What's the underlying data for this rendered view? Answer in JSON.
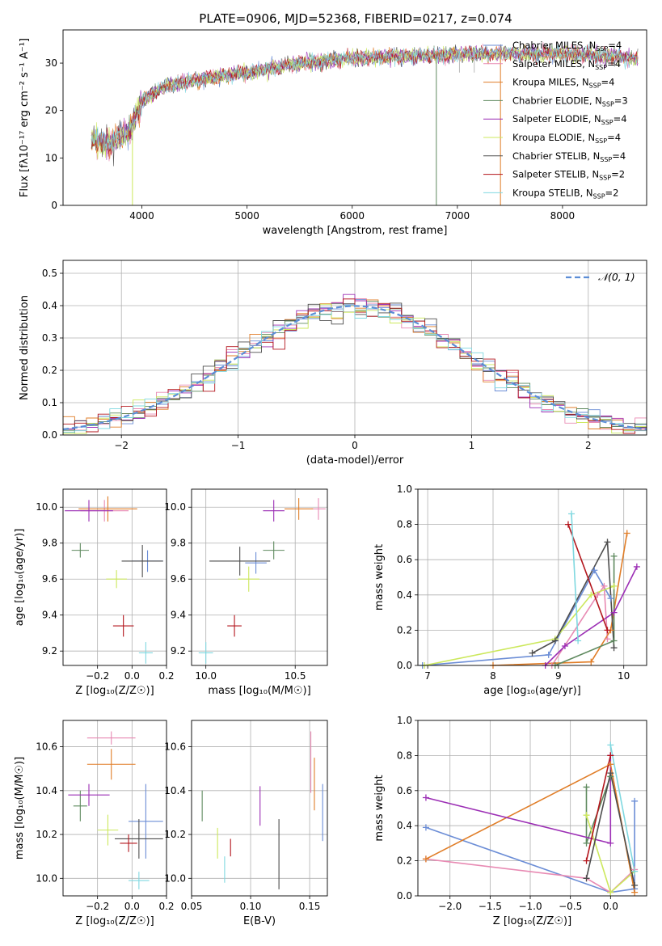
{
  "title": "PLATE=0906, MJD=52368, FIBERID=0217, z=0.074",
  "colors": [
    "#6b8dd6",
    "#e88ab3",
    "#e07d27",
    "#5f8a5f",
    "#9c2fb5",
    "#cce85c",
    "#4d4d4d",
    "#b3151c",
    "#7fd8e0"
  ],
  "chart_data": [
    {
      "type": "line",
      "id": "spectrum",
      "title": "PLATE=0906, MJD=52368, FIBERID=0217, z=0.074",
      "xlabel": "wavelength [Angstrom, rest frame]",
      "ylabel": "Flux [f_λ10^-17 erg cm^-2 s^-1 A^-1]",
      "xlim": [
        3250,
        8800
      ],
      "ylim": [
        0,
        37
      ],
      "xticks": [
        4000,
        5000,
        6000,
        7000,
        8000
      ],
      "yticks": [
        0,
        10,
        20,
        30
      ],
      "grid": false,
      "legend_position": "top-right",
      "legend": [
        {
          "label": "Chabrier MILES, N",
          "sub": "SSP",
          "n": "=4"
        },
        {
          "label": "Salpeter MILES, N",
          "sub": "SSP",
          "n": "=4"
        },
        {
          "label": "Kroupa MILES, N",
          "sub": "SSP",
          "n": "=4"
        },
        {
          "label": "Chabrier ELODIE, N",
          "sub": "SSP",
          "n": "=3"
        },
        {
          "label": "Salpeter ELODIE, N",
          "sub": "SSP",
          "n": "=4"
        },
        {
          "label": "Kroupa ELODIE, N",
          "sub": "SSP",
          "n": "=4"
        },
        {
          "label": "Chabrier STELIB, N",
          "sub": "SSP",
          "n": "=4"
        },
        {
          "label": "Salpeter STELIB, N",
          "sub": "SSP",
          "n": "=2"
        },
        {
          "label": "Kroupa STELIB, N",
          "sub": "SSP",
          "n": "=2"
        }
      ],
      "continuum": [
        [
          3500,
          14
        ],
        [
          3700,
          13
        ],
        [
          3900,
          16
        ],
        [
          4000,
          22
        ],
        [
          4200,
          25
        ],
        [
          4500,
          26.5
        ],
        [
          5000,
          28
        ],
        [
          5500,
          30
        ],
        [
          6000,
          31
        ],
        [
          6500,
          31.5
        ],
        [
          7000,
          31.8
        ],
        [
          7500,
          32
        ],
        [
          8000,
          32
        ],
        [
          8500,
          31.5
        ],
        [
          8700,
          31
        ]
      ],
      "drops": [
        [
          3910,
          0
        ],
        [
          6800,
          0
        ],
        [
          7410,
          0
        ],
        [
          7020,
          28
        ],
        [
          7160,
          28
        ]
      ]
    },
    {
      "type": "histogram",
      "id": "residuals",
      "xlabel": "(data-model)/error",
      "ylabel": "Normed distribution",
      "xlim": [
        -2.5,
        2.5
      ],
      "ylim": [
        0,
        0.54
      ],
      "xticks": [
        -2,
        -1,
        0,
        1,
        2
      ],
      "yticks": [
        0.0,
        0.1,
        0.2,
        0.3,
        0.4,
        0.5
      ],
      "grid": true,
      "legend_label": "𝒩(0, 1)",
      "legend_position": "top-right"
    },
    {
      "type": "error-cross",
      "id": "z-age",
      "xlabel": "Z [log10(Z/Z☉)]",
      "ylabel": "age  [log10(age/yr)]",
      "xlim": [
        -0.4,
        0.2
      ],
      "ylim": [
        9.12,
        10.1
      ],
      "xticks": [
        -0.2,
        0.0,
        0.2
      ],
      "yticks": [
        9.2,
        9.4,
        9.6,
        9.8,
        10.0
      ],
      "grid": true,
      "points": [
        {
          "x": 0.09,
          "xerr": 0.09,
          "y": 9.7,
          "yerr": 0.06
        },
        {
          "x": -0.16,
          "xerr": 0.14,
          "y": 9.98,
          "yerr": 0.06
        },
        {
          "x": -0.14,
          "xerr": 0.17,
          "y": 9.99,
          "yerr": 0.07
        },
        {
          "x": -0.3,
          "xerr": 0.05,
          "y": 9.76,
          "yerr": 0.04
        },
        {
          "x": -0.25,
          "xerr": 0.14,
          "y": 9.98,
          "yerr": 0.06
        },
        {
          "x": -0.09,
          "xerr": 0.06,
          "y": 9.6,
          "yerr": 0.05
        },
        {
          "x": 0.06,
          "xerr": 0.12,
          "y": 9.7,
          "yerr": 0.09
        },
        {
          "x": -0.05,
          "xerr": 0.06,
          "y": 9.34,
          "yerr": 0.06
        },
        {
          "x": 0.08,
          "xerr": 0.04,
          "y": 9.19,
          "yerr": 0.06
        }
      ]
    },
    {
      "type": "error-cross",
      "id": "mass-age",
      "xlabel": "mass [log10(M/M☉)]",
      "ylabel": "",
      "xlim": [
        9.92,
        10.68
      ],
      "ylim": [
        9.12,
        10.1
      ],
      "xticks": [
        10.0,
        10.5
      ],
      "yticks": [
        9.2,
        9.4,
        9.6,
        9.8,
        10.0
      ],
      "grid": true,
      "points": [
        {
          "x": 10.28,
          "xerr": 0.06,
          "y": 9.69,
          "yerr": 0.06
        },
        {
          "x": 10.63,
          "xerr": 0.04,
          "y": 9.99,
          "yerr": 0.06
        },
        {
          "x": 10.52,
          "xerr": 0.08,
          "y": 9.99,
          "yerr": 0.06
        },
        {
          "x": 10.38,
          "xerr": 0.06,
          "y": 9.76,
          "yerr": 0.05
        },
        {
          "x": 10.38,
          "xerr": 0.06,
          "y": 9.98,
          "yerr": 0.06
        },
        {
          "x": 10.24,
          "xerr": 0.06,
          "y": 9.6,
          "yerr": 0.07
        },
        {
          "x": 10.19,
          "xerr": 0.17,
          "y": 9.7,
          "yerr": 0.08
        },
        {
          "x": 10.16,
          "xerr": 0.04,
          "y": 9.34,
          "yerr": 0.06
        },
        {
          "x": 10.0,
          "xerr": 0.04,
          "y": 9.19,
          "yerr": 0.06
        }
      ]
    },
    {
      "type": "line",
      "id": "age-weight",
      "xlabel": "age  [log10(age/yr)]",
      "ylabel": "mass weight",
      "xlim": [
        6.85,
        10.35
      ],
      "ylim": [
        0,
        1
      ],
      "xticks": [
        7,
        8,
        9,
        10
      ],
      "yticks": [
        0.0,
        0.2,
        0.4,
        0.6,
        0.8,
        1.0
      ],
      "grid": true,
      "series": [
        {
          "x": [
            6.92,
            8.85,
            9.55,
            9.8
          ],
          "y": [
            0.0,
            0.06,
            0.54,
            0.38
          ]
        },
        {
          "x": [
            8.9,
            9.6,
            9.7,
            9.75
          ],
          "y": [
            0.0,
            0.4,
            0.45,
            0.15
          ]
        },
        {
          "x": [
            8.0,
            9.5,
            9.8,
            10.05
          ],
          "y": [
            0.0,
            0.02,
            0.2,
            0.75
          ]
        },
        {
          "x": [
            8.95,
            9.85,
            9.85
          ],
          "y": [
            0.0,
            0.14,
            0.62
          ]
        },
        {
          "x": [
            8.8,
            9.1,
            9.85,
            10.2
          ],
          "y": [
            0.0,
            0.11,
            0.3,
            0.56
          ]
        },
        {
          "x": [
            6.95,
            8.95,
            9.5,
            9.85
          ],
          "y": [
            0.0,
            0.15,
            0.4,
            0.45
          ]
        },
        {
          "x": [
            8.6,
            8.95,
            9.75,
            9.85
          ],
          "y": [
            0.07,
            0.14,
            0.7,
            0.1
          ]
        },
        {
          "x": [
            9.15,
            9.75
          ],
          "y": [
            0.8,
            0.2
          ]
        },
        {
          "x": [
            9.2,
            9.3
          ],
          "y": [
            0.86,
            0.14
          ]
        }
      ]
    },
    {
      "type": "error-cross",
      "id": "z-mass",
      "xlabel": "Z [log10(Z/Z☉)]",
      "ylabel": "mass [log10(M/M☉)]",
      "xlim": [
        -0.4,
        0.2
      ],
      "ylim": [
        9.92,
        10.72
      ],
      "xticks": [
        -0.2,
        0.0,
        0.2
      ],
      "yticks": [
        10.0,
        10.2,
        10.4,
        10.6
      ],
      "grid": true,
      "points": [
        {
          "x": 0.08,
          "xerr": 0.1,
          "y": 10.26,
          "yerr": 0.17
        },
        {
          "x": -0.12,
          "xerr": 0.14,
          "y": 10.64,
          "yerr": 0.03
        },
        {
          "x": -0.12,
          "xerr": 0.14,
          "y": 10.52,
          "yerr": 0.07
        },
        {
          "x": -0.3,
          "xerr": 0.04,
          "y": 10.33,
          "yerr": 0.07
        },
        {
          "x": -0.25,
          "xerr": 0.12,
          "y": 10.38,
          "yerr": 0.05
        },
        {
          "x": -0.14,
          "xerr": 0.06,
          "y": 10.22,
          "yerr": 0.07
        },
        {
          "x": 0.04,
          "xerr": 0.14,
          "y": 10.18,
          "yerr": 0.09
        },
        {
          "x": -0.02,
          "xerr": 0.05,
          "y": 10.16,
          "yerr": 0.04
        },
        {
          "x": 0.04,
          "xerr": 0.06,
          "y": 9.99,
          "yerr": 0.04
        }
      ]
    },
    {
      "type": "error-bar",
      "id": "ebv-mass",
      "xlabel": "E(B-V)",
      "ylabel": "",
      "xlim": [
        0.05,
        0.165
      ],
      "ylim": [
        9.92,
        10.72
      ],
      "xticks": [
        0.05,
        0.1,
        0.15
      ],
      "yticks": [
        10.0,
        10.2,
        10.4,
        10.6
      ],
      "xticklabels": [
        "0.05",
        "0.10",
        "0.15"
      ],
      "grid": true,
      "points": [
        {
          "x": 0.161,
          "y": 10.3,
          "yerr": 0.13
        },
        {
          "x": 0.151,
          "y": 10.53,
          "yerr": 0.14
        },
        {
          "x": 0.154,
          "y": 10.43,
          "yerr": 0.12
        },
        {
          "x": 0.059,
          "y": 10.33,
          "yerr": 0.07
        },
        {
          "x": 0.108,
          "y": 10.33,
          "yerr": 0.09
        },
        {
          "x": 0.072,
          "y": 10.16,
          "yerr": 0.07
        },
        {
          "x": 0.124,
          "y": 10.11,
          "yerr": 0.16
        },
        {
          "x": 0.083,
          "y": 10.14,
          "yerr": 0.04
        },
        {
          "x": 0.078,
          "y": 10.04,
          "yerr": 0.06
        }
      ]
    },
    {
      "type": "line",
      "id": "z-weight",
      "xlabel": "Z [log10(Z/Z☉)]",
      "ylabel": "mass weight",
      "xlim": [
        -2.4,
        0.45
      ],
      "ylim": [
        0,
        1
      ],
      "xticks": [
        -2.0,
        -1.5,
        -1.0,
        -0.5,
        0.0
      ],
      "yticks": [
        0.0,
        0.2,
        0.4,
        0.6,
        0.8,
        1.0
      ],
      "grid": true,
      "series": [
        {
          "x": [
            -2.3,
            0.0,
            0.3,
            0.3
          ],
          "y": [
            0.39,
            0.02,
            0.04,
            0.54
          ]
        },
        {
          "x": [
            -2.3,
            -0.3,
            0.0,
            0.3
          ],
          "y": [
            0.21,
            0.1,
            0.02,
            0.15
          ]
        },
        {
          "x": [
            -2.3,
            0.0,
            0.3
          ],
          "y": [
            0.21,
            0.75,
            0.02
          ]
        },
        {
          "x": [
            -0.3,
            -0.3,
            0.0
          ],
          "y": [
            0.62,
            0.3,
            0.68
          ]
        },
        {
          "x": [
            -2.3,
            0.0,
            0.0
          ],
          "y": [
            0.56,
            0.3,
            0.8
          ]
        },
        {
          "x": [
            -0.3,
            0.0,
            0.3
          ],
          "y": [
            0.46,
            0.02,
            0.14
          ]
        },
        {
          "x": [
            -0.3,
            0.0,
            0.3
          ],
          "y": [
            0.1,
            0.7,
            0.06
          ]
        },
        {
          "x": [
            -0.3,
            0.0
          ],
          "y": [
            0.2,
            0.8
          ]
        },
        {
          "x": [
            0.0,
            0.3
          ],
          "y": [
            0.86,
            0.14
          ]
        }
      ]
    }
  ]
}
